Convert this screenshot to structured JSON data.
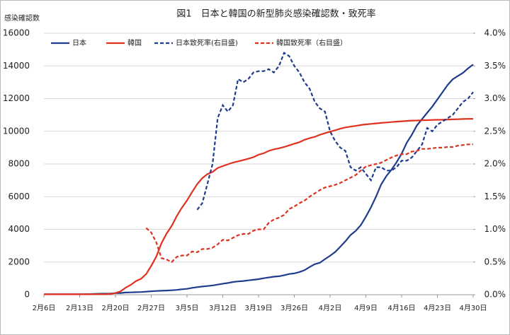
{
  "chart_data": {
    "type": "line",
    "title": "図1　日本と韓国の新型肺炎感染確認数・致死率",
    "ylabel": "感染確認数",
    "categories": [
      "2月6日",
      null,
      null,
      null,
      null,
      null,
      null,
      "2月13日",
      null,
      null,
      null,
      null,
      null,
      null,
      "2月20日",
      null,
      null,
      null,
      null,
      null,
      null,
      "2月27日",
      null,
      null,
      null,
      null,
      null,
      null,
      "3月5日",
      null,
      null,
      null,
      null,
      null,
      null,
      "3月12日",
      null,
      null,
      null,
      null,
      null,
      null,
      "3月19日",
      null,
      null,
      null,
      null,
      null,
      null,
      "3月26日",
      null,
      null,
      null,
      null,
      null,
      null,
      "4月2日",
      null,
      null,
      null,
      null,
      null,
      null,
      "4月9日",
      null,
      null,
      null,
      null,
      null,
      null,
      "4月16日",
      null,
      null,
      null,
      null,
      null,
      null,
      "4月23日",
      null,
      null,
      null,
      null,
      null,
      null,
      "4月30日"
    ],
    "ylim": [
      0,
      16000
    ],
    "yticks": [
      0,
      2000,
      4000,
      6000,
      8000,
      10000,
      12000,
      14000,
      16000
    ],
    "y2lim": [
      0,
      4.0
    ],
    "y2ticks": [
      {
        "value": 0,
        "label": "0.0%"
      },
      {
        "value": 0.5,
        "label": "0.5%"
      },
      {
        "value": 1.0,
        "label": "1.0%"
      },
      {
        "value": 1.5,
        "label": "1.5%"
      },
      {
        "value": 2.0,
        "label": "2.0%"
      },
      {
        "value": 2.5,
        "label": "2.5%"
      },
      {
        "value": 3.0,
        "label": "3.0%"
      },
      {
        "value": 3.5,
        "label": "3.5%"
      },
      {
        "value": 4.0,
        "label": "4.0%"
      }
    ],
    "grid": true,
    "legend": "top",
    "series": [
      {
        "name": "日本",
        "color": "#1f3c8c",
        "dash": false,
        "values": [
          25,
          25,
          26,
          26,
          28,
          28,
          28,
          29,
          33,
          41,
          53,
          59,
          65,
          73,
          94,
          105,
          132,
          144,
          156,
          164,
          186,
          210,
          230,
          241,
          256,
          274,
          293,
          331,
          360,
          420,
          461,
          502,
          532,
          567,
          620,
          675,
          716,
          780,
          814,
          839,
          878,
          914,
          950,
          1007,
          1054,
          1101,
          1128,
          1193,
          1268,
          1307,
          1387,
          1499,
          1693,
          1866,
          1953,
          2178,
          2381,
          2617,
          2935,
          3271,
          3654,
          3906,
          4257,
          4768,
          5347,
          6005,
          6748,
          7255,
          7645,
          8100,
          8626,
          9296,
          9787,
          10361,
          10751,
          11135,
          11512,
          11950,
          12388,
          12829,
          13182,
          13385,
          13576,
          13852,
          14088
        ]
      },
      {
        "name": "韓国",
        "color": "#e0301e",
        "dash": false,
        "values": [
          23,
          24,
          24,
          25,
          27,
          28,
          28,
          28,
          28,
          28,
          29,
          30,
          31,
          46,
          104,
          204,
          433,
          602,
          833,
          977,
          1261,
          1766,
          2337,
          3150,
          3736,
          4212,
          4812,
          5328,
          5766,
          6284,
          6767,
          7134,
          7382,
          7513,
          7755,
          7869,
          7979,
          8086,
          8162,
          8236,
          8320,
          8413,
          8565,
          8652,
          8799,
          8897,
          8961,
          9037,
          9137,
          9241,
          9332,
          9478,
          9583,
          9661,
          9786,
          9887,
          9976,
          10062,
          10156,
          10237,
          10284,
          10331,
          10384,
          10423,
          10450,
          10480,
          10512,
          10537,
          10564,
          10591,
          10613,
          10635,
          10653,
          10661,
          10674,
          10683,
          10694,
          10702,
          10708,
          10718,
          10728,
          10738,
          10752,
          10761,
          10765
        ]
      },
      {
        "name": "日本致死率(右目盛)",
        "color": "#1f3c8c",
        "dash": true,
        "axis": "y2",
        "values": [
          null,
          null,
          null,
          null,
          null,
          null,
          null,
          null,
          null,
          null,
          null,
          null,
          null,
          null,
          null,
          null,
          null,
          null,
          null,
          null,
          null,
          null,
          null,
          null,
          null,
          null,
          null,
          null,
          null,
          null,
          1.3,
          1.4,
          1.7,
          2.0,
          2.7,
          2.9,
          2.8,
          2.9,
          3.3,
          3.25,
          3.3,
          3.4,
          3.42,
          3.42,
          3.45,
          3.4,
          3.5,
          3.7,
          3.65,
          3.5,
          3.4,
          3.25,
          3.15,
          2.95,
          2.85,
          2.8,
          2.5,
          2.35,
          2.25,
          2.2,
          1.95,
          1.9,
          1.95,
          1.85,
          1.75,
          1.95,
          1.95,
          1.9,
          1.9,
          1.95,
          2.05,
          2.05,
          2.1,
          2.2,
          2.3,
          2.55,
          2.5,
          2.6,
          2.65,
          2.7,
          2.75,
          2.85,
          2.95,
          3.0,
          3.1
        ]
      },
      {
        "name": "韓国致死率（右目盛）",
        "color": "#e0301e",
        "dash": true,
        "axis": "y2",
        "values": [
          null,
          null,
          null,
          null,
          null,
          null,
          null,
          null,
          null,
          null,
          null,
          null,
          null,
          null,
          null,
          null,
          null,
          null,
          null,
          null,
          1.02,
          0.95,
          0.8,
          0.56,
          0.54,
          0.5,
          0.58,
          0.6,
          0.6,
          0.66,
          0.65,
          0.7,
          0.7,
          0.72,
          0.77,
          0.84,
          0.83,
          0.87,
          0.91,
          0.93,
          0.93,
          0.98,
          1.0,
          1.0,
          1.1,
          1.15,
          1.18,
          1.22,
          1.31,
          1.35,
          1.4,
          1.44,
          1.5,
          1.55,
          1.6,
          1.64,
          1.66,
          1.68,
          1.71,
          1.75,
          1.79,
          1.83,
          1.9,
          1.96,
          1.98,
          2.0,
          2.02,
          2.06,
          2.1,
          2.13,
          2.15,
          2.15,
          2.19,
          2.2,
          2.23,
          2.23,
          2.24,
          2.25,
          2.25,
          2.26,
          2.26,
          2.28,
          2.29,
          2.3,
          2.3
        ]
      }
    ]
  }
}
